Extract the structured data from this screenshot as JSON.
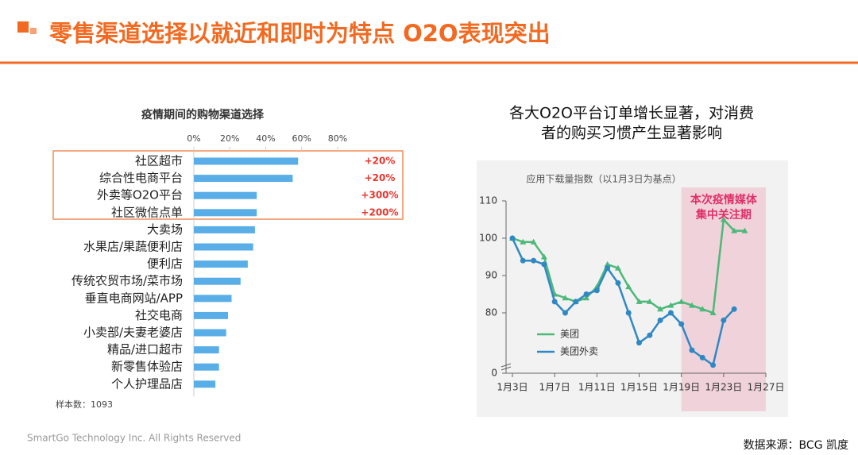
{
  "header": {
    "title": "零售渠道选择以就近和即时为特点 O2O表现突出"
  },
  "chart_data": [
    {
      "type": "bar",
      "orientation": "horizontal",
      "title": "疫情期间的购物渠道选择",
      "categories": [
        "社区超市",
        "综合性电商平台",
        "外卖等O2O平台",
        "社区微信点单",
        "大卖场",
        "水果店/果蔬便利店",
        "便利店",
        "传统农贸市场/菜市场",
        "垂直电商网站/APP",
        "社交电商",
        "小卖部/夫妻老婆店",
        "精品/进口超市",
        "新零售体验店",
        "个人护理品店"
      ],
      "values": [
        58,
        55,
        35,
        35,
        34,
        33,
        30,
        26,
        21,
        19,
        18,
        14,
        14,
        12
      ],
      "annotations": [
        "+20%",
        "+20%",
        "+300%",
        "+200%"
      ],
      "color": "#5aaee8",
      "annotation_color": "#e8352c",
      "xlim": [
        0,
        80
      ],
      "xticks": [
        {
          "value": 0,
          "label": "0%"
        },
        {
          "value": 20,
          "label": "20%"
        },
        {
          "value": 40,
          "label": "40%"
        },
        {
          "value": 60,
          "label": "60%"
        },
        {
          "value": 80,
          "label": "80%"
        }
      ],
      "note": "样本数：1093"
    },
    {
      "type": "line",
      "title": [
        "各大O2O平台订单增长显著，对消费",
        "者的购买习惯产生显著影响"
      ],
      "subtitle": "应用下载量指数（以1月3日为基点）",
      "x": [
        3,
        4,
        5,
        6,
        7,
        8,
        9,
        10,
        11,
        12,
        13,
        14,
        15,
        16,
        17,
        18,
        19,
        20,
        21,
        22,
        23,
        24,
        25
      ],
      "series": [
        {
          "name": "美团",
          "color": "#4cb87a",
          "values": [
            100,
            99,
            99,
            95,
            85,
            84,
            83,
            84,
            87,
            93,
            92,
            87,
            83,
            83,
            81,
            82,
            83,
            82,
            81,
            80,
            105,
            102,
            102
          ]
        },
        {
          "name": "美团外卖",
          "color": "#2f88c3",
          "values": [
            100,
            94,
            94,
            93,
            83,
            80,
            83,
            85,
            86,
            92,
            88,
            80,
            72,
            74,
            78,
            80,
            77,
            70,
            68,
            66,
            78,
            81,
            null
          ]
        }
      ],
      "xlim": [
        3,
        27
      ],
      "xticks": [
        {
          "value": 3,
          "label": "1月3日"
        },
        {
          "value": 7,
          "label": "1月7日"
        },
        {
          "value": 11,
          "label": "1月11日"
        },
        {
          "value": 15,
          "label": "1月15日"
        },
        {
          "value": 19,
          "label": "1月19日"
        },
        {
          "value": 23,
          "label": "1月23日"
        },
        {
          "value": 27,
          "label": "1月27日"
        }
      ],
      "ylim": [
        64,
        110
      ],
      "yticks": [
        0,
        80,
        90,
        100,
        110
      ],
      "axis_break": true,
      "highlight": {
        "xrange": [
          19,
          27
        ],
        "label": [
          "本次疫情媒体",
          "集中关注期"
        ],
        "color": "#f0d3da",
        "label_color": "#e0306a"
      },
      "legend": "lower left"
    }
  ],
  "footer": {
    "copyright": "SmartGo Technology Inc. All Rights Reserved",
    "source": "数据来源：BCG 凯度"
  }
}
